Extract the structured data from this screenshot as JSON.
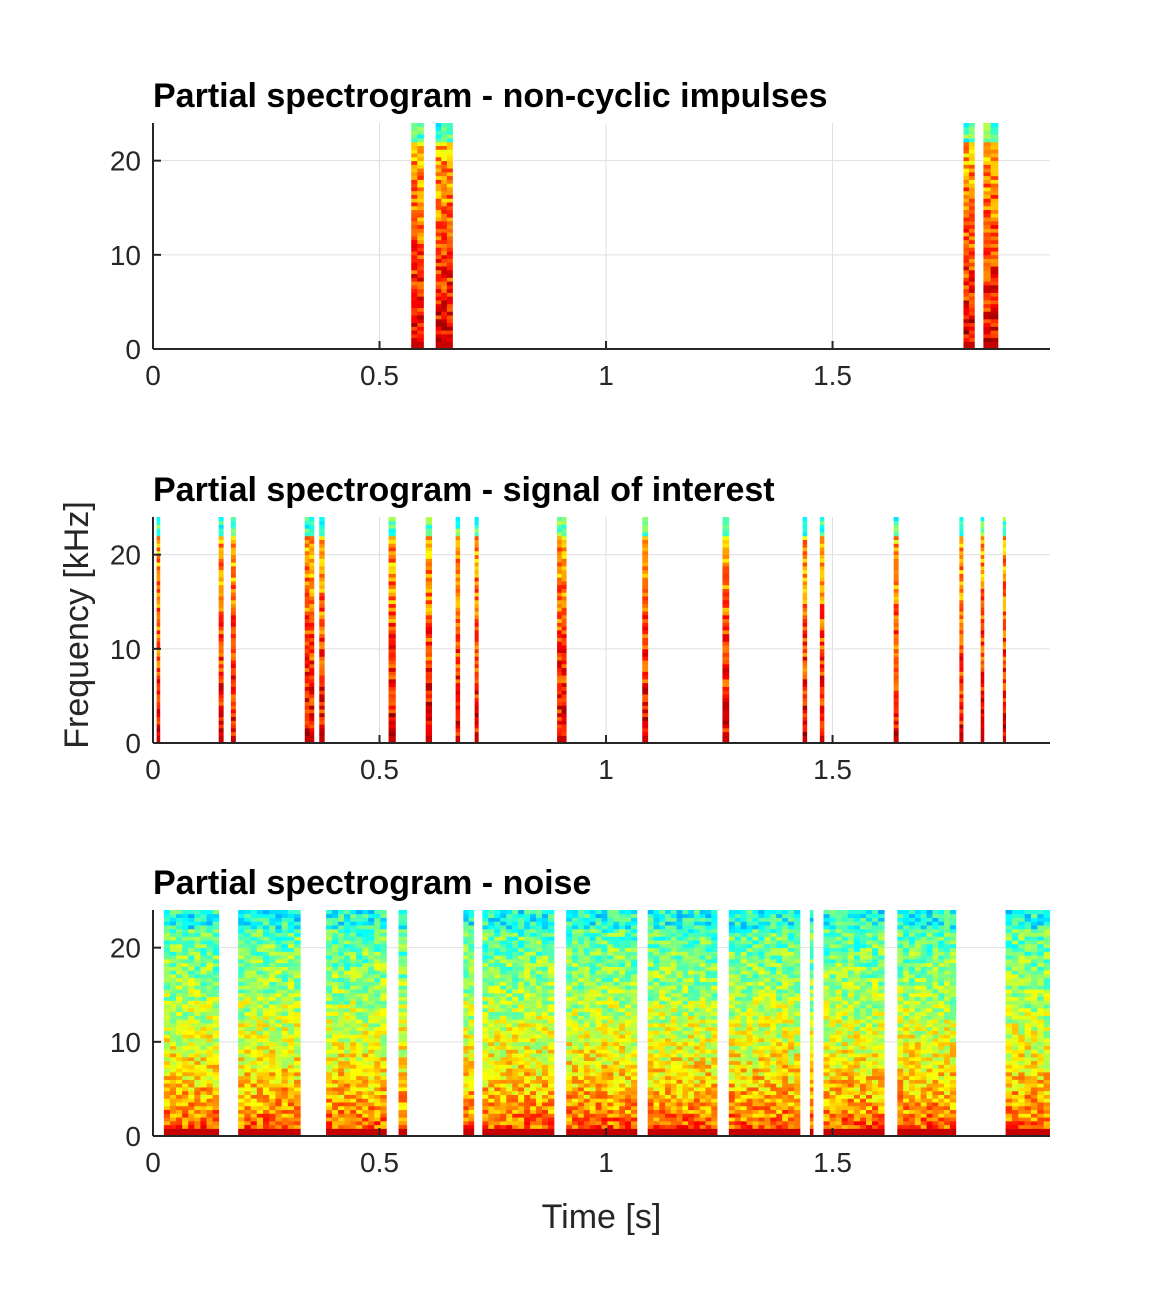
{
  "chart_data": [
    {
      "type": "heatmap",
      "title": "Partial spectrogram - non-cyclic impulses",
      "xlabel": "",
      "ylabel": "",
      "xlim": [
        0,
        1.98
      ],
      "ylim": [
        0,
        24
      ],
      "xticks": [
        0,
        0.5,
        1,
        1.5
      ],
      "xtick_labels": [
        "0",
        "0.5",
        "1",
        "1.5"
      ],
      "yticks": [
        0,
        10,
        20
      ],
      "ytick_labels": [
        "0",
        "10",
        "20"
      ],
      "grid": true,
      "segments": [
        {
          "start": 0.57,
          "end": 0.597
        },
        {
          "start": 0.624,
          "end": 0.661
        },
        {
          "start": 1.789,
          "end": 1.813
        },
        {
          "start": 1.833,
          "end": 1.865
        }
      ]
    },
    {
      "type": "heatmap",
      "title": "Partial spectrogram - signal of interest",
      "xlabel": "",
      "ylabel": "Frequency [kHz]",
      "xlim": [
        0,
        1.98
      ],
      "ylim": [
        0,
        24
      ],
      "xticks": [
        0,
        0.5,
        1,
        1.5
      ],
      "xtick_labels": [
        "0",
        "0.5",
        "1",
        "1.5"
      ],
      "yticks": [
        0,
        10,
        20
      ],
      "ytick_labels": [
        "0",
        "10",
        "20"
      ],
      "grid": true,
      "segments": [
        {
          "start": 0.008,
          "end": 0.015
        },
        {
          "start": 0.145,
          "end": 0.155
        },
        {
          "start": 0.172,
          "end": 0.182
        },
        {
          "start": 0.335,
          "end": 0.355
        },
        {
          "start": 0.367,
          "end": 0.378
        },
        {
          "start": 0.52,
          "end": 0.535
        },
        {
          "start": 0.602,
          "end": 0.615
        },
        {
          "start": 0.668,
          "end": 0.677
        },
        {
          "start": 0.71,
          "end": 0.718
        },
        {
          "start": 0.892,
          "end": 0.912
        },
        {
          "start": 1.08,
          "end": 1.092
        },
        {
          "start": 1.257,
          "end": 1.271
        },
        {
          "start": 1.434,
          "end": 1.443
        },
        {
          "start": 1.472,
          "end": 1.481
        },
        {
          "start": 1.635,
          "end": 1.645
        },
        {
          "start": 1.78,
          "end": 1.788
        },
        {
          "start": 1.827,
          "end": 1.834
        },
        {
          "start": 1.876,
          "end": 1.882
        }
      ]
    },
    {
      "type": "heatmap",
      "title": "Partial spectrogram - noise",
      "xlabel": "Time [s]",
      "ylabel": "",
      "xlim": [
        0,
        1.98
      ],
      "ylim": [
        0,
        24
      ],
      "xticks": [
        0,
        0.5,
        1,
        1.5
      ],
      "xtick_labels": [
        "0",
        "0.5",
        "1",
        "1.5"
      ],
      "yticks": [
        0,
        10,
        20
      ],
      "ytick_labels": [
        "0",
        "10",
        "20"
      ],
      "grid": true,
      "segments": [
        {
          "start": 0.024,
          "end": 0.145
        },
        {
          "start": 0.188,
          "end": 0.325
        },
        {
          "start": 0.382,
          "end": 0.515
        },
        {
          "start": 0.542,
          "end": 0.56
        },
        {
          "start": 0.685,
          "end": 0.708
        },
        {
          "start": 0.727,
          "end": 0.885
        },
        {
          "start": 0.912,
          "end": 1.068
        },
        {
          "start": 1.092,
          "end": 1.245
        },
        {
          "start": 1.271,
          "end": 1.428
        },
        {
          "start": 1.45,
          "end": 1.457
        },
        {
          "start": 1.48,
          "end": 1.614
        },
        {
          "start": 1.643,
          "end": 1.772
        },
        {
          "start": 1.882,
          "end": 1.98
        }
      ]
    }
  ]
}
